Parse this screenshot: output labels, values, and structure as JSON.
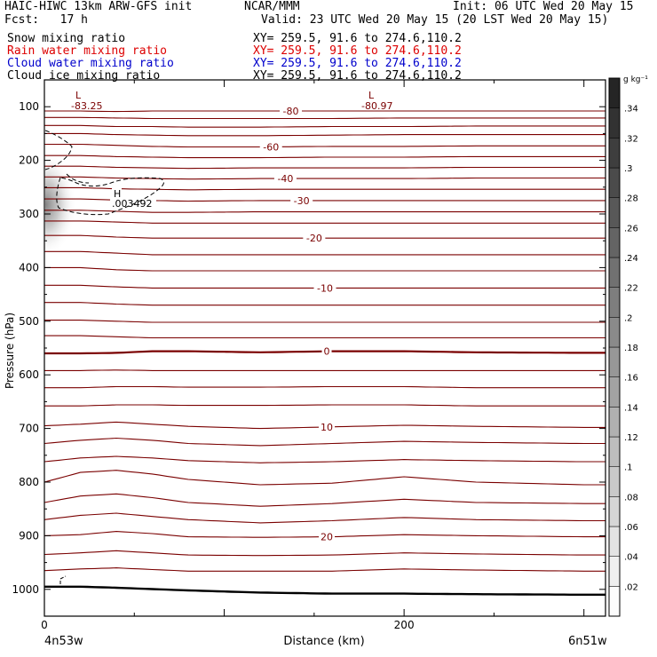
{
  "header": {
    "title_left": "HAIC-HIWC 13km ARW-GFS init",
    "org": "NCAR/MMM",
    "init": "Init: 06 UTC Wed 20 May 15",
    "fcst": "Fcst:   17 h",
    "valid": "Valid: 23 UTC Wed 20 May 15 (20 LST Wed 20 May 15)"
  },
  "fields": [
    {
      "name": "Snow mixing ratio",
      "xy": "XY= 259.5, 91.6 to 274.6,110.2",
      "color": "#000000"
    },
    {
      "name": "Rain water mixing ratio",
      "xy": "XY= 259.5, 91.6 to 274.6,110.2",
      "color": "#dd0000"
    },
    {
      "name": "Cloud water mixing ratio",
      "xy": "XY= 259.5, 91.6 to 274.6,110.2",
      "color": "#0000cc"
    },
    {
      "name": "Cloud ice mixing ratio",
      "xy": "XY= 259.5, 91.6 to 274.6,110.2",
      "color": "#000000"
    }
  ],
  "chart_data": {
    "type": "contour",
    "xlabel": "Distance (km)",
    "ylabel": "Pressure (hPa)",
    "xlim": [
      0,
      300
    ],
    "ylim": [
      1050,
      50
    ],
    "x_ticks": [
      0,
      200
    ],
    "y_ticks": [
      100,
      200,
      300,
      400,
      500,
      600,
      700,
      800,
      900,
      1000
    ],
    "left_endpoint": "4n53w",
    "right_endpoint": "6n51w",
    "colorbar": {
      "unit": "g kg⁻¹",
      "labels": [
        ".02",
        ".04",
        ".06",
        ".08",
        ".1",
        ".12",
        ".14",
        ".16",
        ".18",
        ".2",
        ".22",
        ".24",
        ".26",
        ".28",
        ".3",
        ".32",
        ".34"
      ]
    },
    "temperature_labels": [
      "-83.25",
      "-80",
      "-80.97",
      "-60",
      "-40",
      "-30",
      "-20",
      "-10",
      "0",
      "10",
      "20"
    ],
    "extrema": [
      {
        "type": "L",
        "value": "-83.25"
      },
      {
        "type": "L",
        "value": "-80.97"
      },
      {
        "type": "H",
        "value": ".003492"
      }
    ],
    "isotherms": [
      {
        "label": "-80",
        "p": [
          108,
          108,
          109,
          108,
          108,
          108,
          108,
          108,
          108,
          108
        ]
      },
      {
        "p": [
          120,
          120,
          121,
          122,
          122,
          122,
          122,
          121,
          121,
          121
        ]
      },
      {
        "p": [
          135,
          135,
          137,
          137,
          138,
          138,
          137,
          137,
          136,
          136
        ]
      },
      {
        "p": [
          150,
          150,
          152,
          153,
          154,
          154,
          153,
          152,
          152,
          152
        ]
      },
      {
        "label": "-60",
        "p": [
          170,
          170,
          172,
          174,
          175,
          175,
          174,
          174,
          173,
          173
        ]
      },
      {
        "p": [
          191,
          191,
          193,
          194,
          195,
          195,
          194,
          194,
          193,
          193
        ]
      },
      {
        "p": [
          211,
          211,
          213,
          214,
          215,
          214,
          214,
          214,
          213,
          213
        ]
      },
      {
        "label": "-40",
        "p": [
          231,
          231,
          233,
          234,
          235,
          234,
          234,
          234,
          233,
          233
        ]
      },
      {
        "p": [
          251,
          251,
          253,
          254,
          255,
          254,
          254,
          254,
          254,
          254
        ]
      },
      {
        "label": "-30",
        "p": [
          272,
          272,
          274,
          275,
          276,
          275,
          275,
          275,
          275,
          275
        ]
      },
      {
        "p": [
          293,
          293,
          295,
          297,
          297,
          296,
          296,
          296,
          296,
          296
        ]
      },
      {
        "p": [
          313,
          313,
          315,
          317,
          317,
          317,
          317,
          317,
          317,
          317
        ]
      },
      {
        "label": "-20",
        "p": [
          340,
          340,
          343,
          345,
          345,
          345,
          345,
          345,
          345,
          345
        ]
      },
      {
        "p": [
          370,
          370,
          373,
          376,
          376,
          376,
          376,
          376,
          376,
          376
        ]
      },
      {
        "p": [
          400,
          400,
          404,
          406,
          406,
          406,
          406,
          406,
          406,
          406
        ]
      },
      {
        "label": "-10",
        "p": [
          433,
          433,
          436,
          438,
          438,
          438,
          438,
          438,
          438,
          438
        ]
      },
      {
        "p": [
          465,
          465,
          468,
          470,
          470,
          470,
          470,
          470,
          470,
          470
        ]
      },
      {
        "p": [
          498,
          498,
          500,
          502,
          502,
          502,
          502,
          502,
          502,
          502
        ]
      },
      {
        "p": [
          527,
          527,
          529,
          531,
          531,
          531,
          531,
          531,
          531,
          531
        ]
      },
      {
        "label": "0",
        "bold": true,
        "p": [
          560,
          560,
          559,
          556,
          556,
          558,
          556,
          556,
          558,
          559
        ]
      },
      {
        "p": [
          592,
          592,
          591,
          592,
          592,
          592,
          592,
          592,
          592,
          592
        ]
      },
      {
        "p": [
          624,
          624,
          622,
          622,
          623,
          623,
          622,
          622,
          624,
          624
        ]
      },
      {
        "p": [
          658,
          658,
          656,
          656,
          657,
          657,
          656,
          656,
          658,
          658
        ]
      },
      {
        "label": "10",
        "p": [
          695,
          692,
          688,
          692,
          696,
          700,
          697,
          694,
          696,
          698
        ]
      },
      {
        "p": [
          728,
          722,
          718,
          722,
          728,
          732,
          728,
          724,
          726,
          728
        ]
      },
      {
        "p": [
          762,
          755,
          752,
          755,
          760,
          764,
          762,
          758,
          760,
          762
        ]
      },
      {
        "p": [
          800,
          782,
          778,
          785,
          795,
          805,
          802,
          790,
          800,
          805
        ]
      },
      {
        "p": [
          838,
          826,
          822,
          829,
          838,
          845,
          840,
          832,
          838,
          840
        ]
      },
      {
        "p": [
          870,
          862,
          858,
          864,
          870,
          876,
          872,
          866,
          870,
          872
        ]
      },
      {
        "label": "20",
        "p": [
          900,
          898,
          892,
          896,
          902,
          903,
          902,
          898,
          900,
          902
        ]
      },
      {
        "p": [
          935,
          932,
          928,
          932,
          936,
          937,
          936,
          932,
          934,
          936
        ]
      },
      {
        "p": [
          965,
          962,
          960,
          963,
          966,
          966,
          966,
          962,
          964,
          966
        ]
      }
    ],
    "isotherm_x": [
      0,
      20,
      40,
      60,
      80,
      120,
      160,
      200,
      240,
      300
    ],
    "surface_pressure": {
      "x": [
        0,
        20,
        40,
        80,
        120,
        160,
        200,
        240,
        300
      ],
      "p": [
        995,
        995,
        997,
        1002,
        1006,
        1008,
        1008,
        1009,
        1010
      ]
    }
  }
}
